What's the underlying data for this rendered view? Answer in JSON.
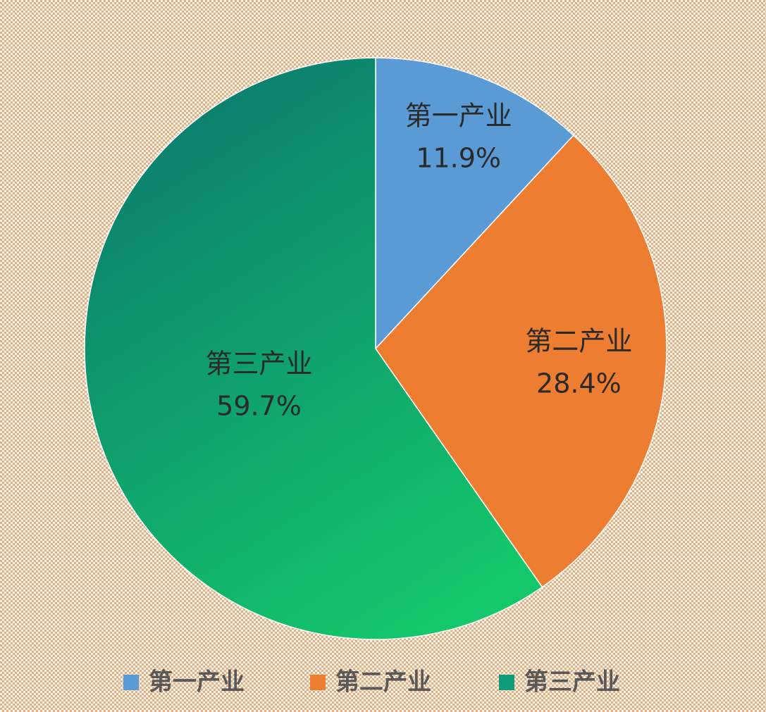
{
  "chart_data": {
    "type": "pie",
    "categories": [
      "第一产业",
      "第二产业",
      "第三产业"
    ],
    "values": [
      11.9,
      28.4,
      59.7
    ],
    "value_labels": [
      "11.9%",
      "28.4%",
      "59.7%"
    ],
    "colors": [
      "#5b9bd5",
      "#ed7d31",
      "#0f9a78"
    ],
    "legend": "bottom"
  }
}
